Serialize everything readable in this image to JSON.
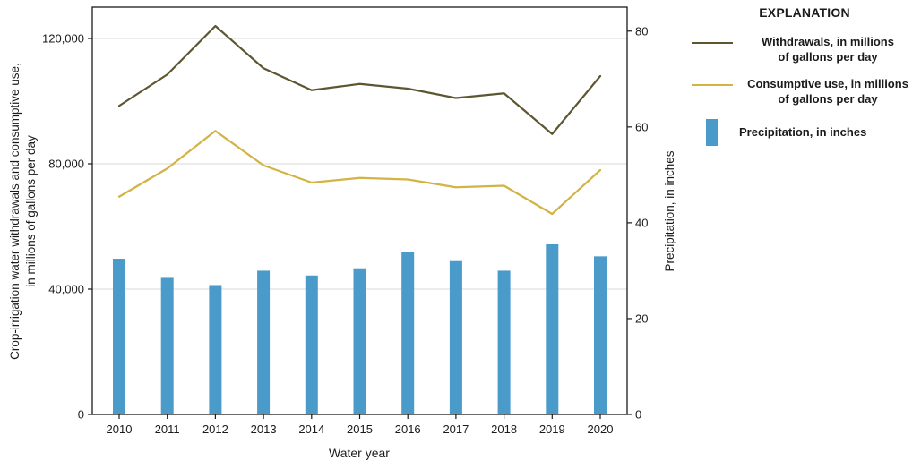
{
  "chart_data": {
    "type": "composite",
    "x": [
      "2010",
      "2011",
      "2012",
      "2013",
      "2014",
      "2015",
      "2016",
      "2017",
      "2018",
      "2019",
      "2020"
    ],
    "series": [
      {
        "name": "Withdrawals, in millions of gallons per day",
        "type": "line",
        "axis": "left",
        "color": "#5d5630",
        "values": [
          98500,
          108500,
          124000,
          110500,
          103500,
          105500,
          104000,
          101000,
          102500,
          89500,
          108000
        ]
      },
      {
        "name": "Consumptive use, in millions of gallons per day",
        "type": "line",
        "axis": "left",
        "color": "#d2b344",
        "values": [
          69500,
          78500,
          90500,
          79500,
          74000,
          75500,
          75000,
          72500,
          73000,
          64000,
          78000
        ]
      },
      {
        "name": "Precipitation, in inches",
        "type": "bar",
        "axis": "right",
        "color": "#4a9bca",
        "values": [
          32.5,
          28.5,
          27,
          30,
          29,
          30.5,
          34,
          32,
          30,
          35.5,
          33
        ]
      }
    ],
    "left_axis": {
      "label_line1": "Crop-irrigation water withdrawals and consumptive use,",
      "label_line2": "in millions of gallons per day",
      "ticks": [
        0,
        40000,
        80000,
        120000
      ],
      "tick_labels": [
        "0",
        "40,000",
        "80,000",
        "120,000"
      ],
      "max": 130000
    },
    "right_axis": {
      "label": "Precipitation, in inches",
      "ticks": [
        0,
        20,
        40,
        60,
        80
      ],
      "tick_labels": [
        "0",
        "20",
        "40",
        "60",
        "80"
      ],
      "max": 85
    },
    "xlabel": "Water year",
    "grid": true,
    "grid_color": "#d8d8d8",
    "legend_position": "top-right"
  },
  "legend": {
    "title": "EXPLANATION",
    "items": [
      {
        "label_line1": "Withdrawals, in millions",
        "label_line2": "of gallons per day"
      },
      {
        "label_line1": "Consumptive use, in millions",
        "label_line2": "of gallons per day"
      },
      {
        "label_line1": "Precipitation, in inches",
        "label_line2": ""
      }
    ]
  }
}
